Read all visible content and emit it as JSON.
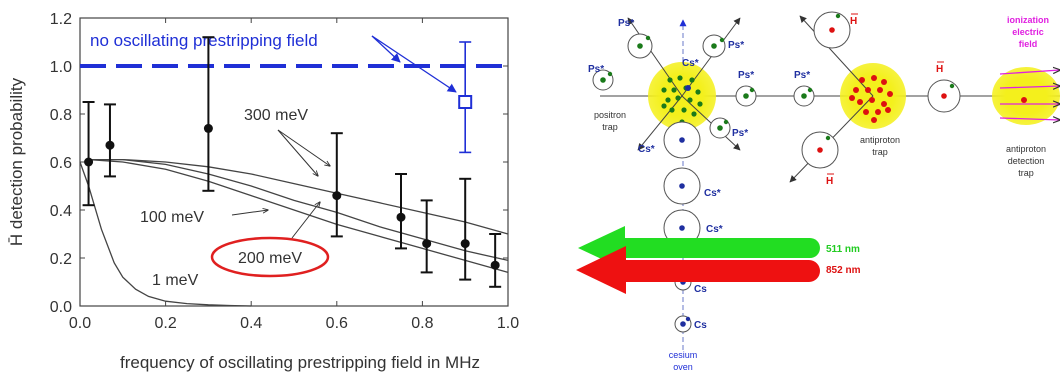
{
  "chart_data": {
    "type": "scatter",
    "xlabel": "frequency of oscillating prestripping field in MHz",
    "ylabel": "H̄ detection probability",
    "xlim": [
      0.0,
      1.0
    ],
    "ylim": [
      0.0,
      1.2
    ],
    "x_ticks": [
      "0.0",
      "0.2",
      "0.4",
      "0.6",
      "0.8",
      "1.0"
    ],
    "y_ticks": [
      "0.0",
      "0.2",
      "0.4",
      "0.6",
      "0.8",
      "1.0",
      "1.2"
    ],
    "grid": false,
    "points": [
      {
        "x": 0.02,
        "y": 0.6,
        "lo": 0.42,
        "hi": 0.85
      },
      {
        "x": 0.07,
        "y": 0.67,
        "lo": 0.54,
        "hi": 0.84
      },
      {
        "x": 0.3,
        "y": 0.74,
        "lo": 0.48,
        "hi": 1.12
      },
      {
        "x": 0.6,
        "y": 0.46,
        "lo": 0.29,
        "hi": 0.72
      },
      {
        "x": 0.75,
        "y": 0.37,
        "lo": 0.24,
        "hi": 0.55
      },
      {
        "x": 0.81,
        "y": 0.26,
        "lo": 0.14,
        "hi": 0.44
      },
      {
        "x": 0.9,
        "y": 0.26,
        "lo": 0.11,
        "hi": 0.53
      },
      {
        "x": 0.97,
        "y": 0.17,
        "lo": 0.08,
        "hi": 0.3
      }
    ],
    "reference": {
      "label": "no oscillating prestripping field",
      "y": 1.0,
      "point": {
        "x": 0.9,
        "y": 0.85,
        "lo": 0.64,
        "hi": 1.1
      },
      "color": "#1f2fd6"
    },
    "curves": [
      {
        "label": "1 meV",
        "x": [
          0.0,
          0.02,
          0.05,
          0.08,
          0.1,
          0.13,
          0.16,
          0.2,
          0.25,
          0.3,
          0.35,
          0.4
        ],
        "y": [
          0.6,
          0.5,
          0.32,
          0.18,
          0.12,
          0.07,
          0.04,
          0.02,
          0.01,
          0.005,
          0.002,
          0.0
        ]
      },
      {
        "label": "100 meV",
        "x": [
          0.02,
          0.1,
          0.2,
          0.3,
          0.4,
          0.5,
          0.6,
          0.7,
          0.8,
          0.9,
          1.0
        ],
        "y": [
          0.61,
          0.6,
          0.57,
          0.52,
          0.46,
          0.4,
          0.34,
          0.29,
          0.24,
          0.19,
          0.14
        ]
      },
      {
        "label": "200 meV",
        "x": [
          0.02,
          0.1,
          0.2,
          0.3,
          0.4,
          0.5,
          0.6,
          0.7,
          0.8,
          0.9,
          1.0
        ],
        "y": [
          0.61,
          0.61,
          0.59,
          0.55,
          0.5,
          0.44,
          0.39,
          0.33,
          0.28,
          0.23,
          0.19
        ]
      },
      {
        "label": "300 meV",
        "x": [
          0.02,
          0.1,
          0.2,
          0.3,
          0.4,
          0.5,
          0.6,
          0.7,
          0.8,
          0.9,
          1.0
        ],
        "y": [
          0.61,
          0.61,
          0.6,
          0.58,
          0.55,
          0.51,
          0.47,
          0.43,
          0.39,
          0.35,
          0.3
        ]
      }
    ],
    "highlight": {
      "label": "200 meV",
      "color": "#e02020"
    }
  },
  "diagram": {
    "labels": {
      "positron_trap": [
        "positron",
        "trap"
      ],
      "antiproton_trap": [
        "antiproton",
        "trap"
      ],
      "detection_trap": [
        "antiproton",
        "detection",
        "trap"
      ],
      "ionization": [
        "ionization",
        "electric",
        "field"
      ],
      "cesium_oven": [
        "cesium",
        "oven"
      ]
    },
    "species": {
      "ps_star": "Ps*",
      "cs_plus": "Cs*",
      "cs": "Cs",
      "hbar": "H"
    },
    "lasers": [
      {
        "label": "511 nm",
        "color": "#22dd22"
      },
      {
        "label": "852 nm",
        "color": "#ee1111"
      }
    ],
    "colors": {
      "trap_glow": "#f2ee1a",
      "positron": "#1a7a1a",
      "antiproton": "#dd1111",
      "cesium": "#1f2fa0",
      "ionization": "#e020e0"
    }
  }
}
